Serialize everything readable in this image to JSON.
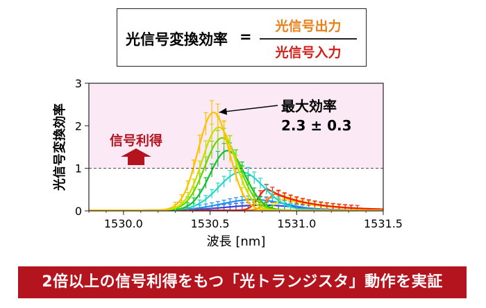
{
  "formula": {
    "lhs": "光信号変換効率",
    "equals": "=",
    "numerator": "光信号出力",
    "denominator": "光信号入力",
    "numerator_color": "#e8801a",
    "denominator_color": "#d0201a"
  },
  "annotations": {
    "max_efficiency_title": "最大効率",
    "max_efficiency_value": "2.3 ± 0.3",
    "gain_label": "信号利得",
    "gain_color": "#b3141e",
    "gain_region_color": "#fbe9f6"
  },
  "banner": {
    "text": "2倍以上の信号利得をもつ「光トランジスタ」動作を実証",
    "background": "#b3141e"
  },
  "chart_data": {
    "type": "line",
    "xlabel": "波長 [nm]",
    "ylabel": "光信号変換効率",
    "xlim": [
      1529.8,
      1531.5
    ],
    "ylim": [
      0,
      3
    ],
    "xticks": [
      1530.0,
      1530.5,
      1531.0,
      1531.5
    ],
    "xtick_labels": [
      "1530.0",
      "1530.5",
      "1531.0",
      "1531.5"
    ],
    "yticks": [
      0,
      1,
      2,
      3
    ],
    "ytick_labels": [
      "0",
      "1",
      "2",
      "3"
    ],
    "reference_line": 1,
    "grid": false,
    "series": [
      {
        "color": "#ffc000",
        "peak_x": 1530.52,
        "peak_y": 2.3,
        "width": 0.09,
        "tail": 0.0
      },
      {
        "color": "#c4e000",
        "peak_x": 1530.55,
        "peak_y": 1.95,
        "width": 0.095,
        "tail": 0.0
      },
      {
        "color": "#66d800",
        "peak_x": 1530.57,
        "peak_y": 1.7,
        "width": 0.1,
        "tail": 0.0
      },
      {
        "color": "#10c030",
        "peak_x": 1530.6,
        "peak_y": 1.4,
        "width": 0.1,
        "tail": 0.0
      },
      {
        "color": "#20d8c8",
        "peak_x": 1530.68,
        "peak_y": 0.9,
        "width": 0.13,
        "tail": 0.0
      },
      {
        "color": "#2090f0",
        "peak_x": 1530.75,
        "peak_y": 0.25,
        "width": 0.18,
        "tail": 0.0
      },
      {
        "color": "#3040e0",
        "peak_x": 1530.8,
        "peak_y": 0.12,
        "width": 0.2,
        "tail": 0.0
      },
      {
        "color": "#ee2010",
        "peak_x": 1530.55,
        "peak_y": 0.0,
        "width": 0.1,
        "tail": 0.5
      },
      {
        "color": "#ff7a00",
        "peak_x": 1530.6,
        "peak_y": 0.0,
        "width": 0.1,
        "tail": 0.38
      },
      {
        "color": "#ffe000",
        "peak_x": 1530.65,
        "peak_y": 0.0,
        "width": 0.1,
        "tail": 0.26
      }
    ]
  }
}
